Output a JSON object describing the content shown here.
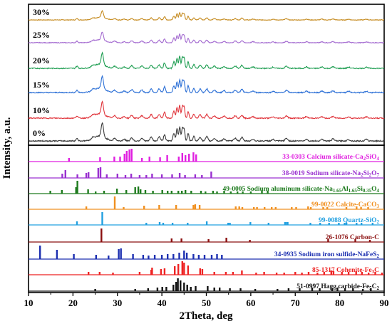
{
  "chart_data": {
    "type": "line",
    "xlabel": "2Theta, deg",
    "ylabel": "Intensity, a.u.",
    "xlim": [
      10,
      90
    ],
    "xticks": [
      "10",
      "20",
      "30",
      "40",
      "50",
      "60",
      "70",
      "80",
      "90"
    ],
    "grid": false,
    "series": [
      {
        "name": "30%",
        "color": "#c58a1e"
      },
      {
        "name": "25%",
        "color": "#a36ad0"
      },
      {
        "name": "20%",
        "color": "#1f9e52"
      },
      {
        "name": "15%",
        "color": "#2b6fd6"
      },
      {
        "name": "10%",
        "color": "#e0333a"
      },
      {
        "name": "0%",
        "color": "#3a3a3a"
      }
    ],
    "peaks": [
      {
        "x": 26.6,
        "h": 0.95,
        "w": 0.35
      },
      {
        "x": 26.0,
        "h": 0.35,
        "w": 1.8
      },
      {
        "x": 20.9,
        "h": 0.18,
        "w": 0.3
      },
      {
        "x": 24.5,
        "h": 0.12,
        "w": 0.4
      },
      {
        "x": 29.4,
        "h": 0.18,
        "w": 0.4
      },
      {
        "x": 31.5,
        "h": 0.12,
        "w": 0.4
      },
      {
        "x": 33.2,
        "h": 0.22,
        "w": 0.4
      },
      {
        "x": 35.5,
        "h": 0.2,
        "w": 0.4
      },
      {
        "x": 37.6,
        "h": 0.28,
        "w": 0.35
      },
      {
        "x": 39.4,
        "h": 0.3,
        "w": 0.35
      },
      {
        "x": 40.6,
        "h": 0.45,
        "w": 0.3
      },
      {
        "x": 42.7,
        "h": 0.55,
        "w": 0.3
      },
      {
        "x": 43.4,
        "h": 0.85,
        "w": 0.25
      },
      {
        "x": 44.0,
        "h": 1.0,
        "w": 0.25
      },
      {
        "x": 44.6,
        "h": 0.9,
        "w": 0.25
      },
      {
        "x": 45.0,
        "h": 0.85,
        "w": 0.25
      },
      {
        "x": 45.9,
        "h": 0.55,
        "w": 0.25
      },
      {
        "x": 47.2,
        "h": 0.32,
        "w": 0.3
      },
      {
        "x": 48.6,
        "h": 0.28,
        "w": 0.35
      },
      {
        "x": 50.1,
        "h": 0.3,
        "w": 0.35
      },
      {
        "x": 51.8,
        "h": 0.18,
        "w": 0.4
      },
      {
        "x": 54.0,
        "h": 0.15,
        "w": 0.4
      },
      {
        "x": 56.5,
        "h": 0.2,
        "w": 0.4
      },
      {
        "x": 58.0,
        "h": 0.25,
        "w": 0.35
      },
      {
        "x": 60.5,
        "h": 0.12,
        "w": 0.4
      },
      {
        "x": 65.0,
        "h": 0.1,
        "w": 0.4
      },
      {
        "x": 68.0,
        "h": 0.18,
        "w": 0.4
      },
      {
        "x": 72.5,
        "h": 0.12,
        "w": 0.4
      },
      {
        "x": 76.0,
        "h": 0.12,
        "w": 0.4
      },
      {
        "x": 78.5,
        "h": 0.14,
        "w": 0.4
      },
      {
        "x": 82.0,
        "h": 0.1,
        "w": 0.4
      },
      {
        "x": 86.0,
        "h": 0.1,
        "w": 0.4
      }
    ],
    "reference_patterns": [
      {
        "name": "33-0303 Calcium silicate-Ca",
        "formula": [
          [
            "2",
            "sub"
          ],
          [
            "SiO",
            "n"
          ],
          [
            "4",
            "sub"
          ]
        ],
        "color": "#e020e0",
        "sticks": [
          [
            19.1,
            0.25
          ],
          [
            26.1,
            0.3
          ],
          [
            29.3,
            0.35
          ],
          [
            30.6,
            0.35
          ],
          [
            31.6,
            0.55
          ],
          [
            32.1,
            0.75
          ],
          [
            32.7,
            0.85
          ],
          [
            33.2,
            0.9
          ],
          [
            35.5,
            0.25
          ],
          [
            37.2,
            0.35
          ],
          [
            39.6,
            0.3
          ],
          [
            41.2,
            0.45
          ],
          [
            43.8,
            0.35
          ],
          [
            44.6,
            0.6
          ],
          [
            45.3,
            0.45
          ],
          [
            46.1,
            0.55
          ],
          [
            47.1,
            0.65
          ],
          [
            47.7,
            0.5
          ]
        ]
      },
      {
        "name": "38-0019 Sodium silicate-Na",
        "formula": [
          [
            "2",
            "sub"
          ],
          [
            "Si",
            "n"
          ],
          [
            "2",
            "sub"
          ],
          [
            "O",
            "n"
          ],
          [
            "7",
            "sub"
          ]
        ],
        "color": "#9a30d0",
        "sticks": [
          [
            17.6,
            0.3
          ],
          [
            18.3,
            0.55
          ],
          [
            21.0,
            0.25
          ],
          [
            23.0,
            0.35
          ],
          [
            23.5,
            0.4
          ],
          [
            25.7,
            0.7
          ],
          [
            26.2,
            0.75
          ],
          [
            27.6,
            0.25
          ],
          [
            30.0,
            0.3
          ],
          [
            31.8,
            0.2
          ],
          [
            33.1,
            0.3
          ],
          [
            35.0,
            0.2
          ],
          [
            36.5,
            0.2
          ],
          [
            37.8,
            0.3
          ],
          [
            40.0,
            0.25
          ],
          [
            42.3,
            0.25
          ],
          [
            44.0,
            0.35
          ],
          [
            45.2,
            0.2
          ],
          [
            47.5,
            0.25
          ],
          [
            49.0,
            0.2
          ],
          [
            51.1,
            0.45
          ]
        ]
      },
      {
        "name": "49-0005 Sodium aluminum silicate-Na",
        "formula": [
          [
            "1.65",
            "sub"
          ],
          [
            "Al",
            "n"
          ],
          [
            "1.65",
            "sub"
          ],
          [
            "Si",
            "n"
          ],
          [
            "0.35",
            "sub"
          ],
          [
            "O",
            "n"
          ],
          [
            "4",
            "sub"
          ]
        ],
        "color": "#1e7b1e",
        "sticks": [
          [
            14.9,
            0.2
          ],
          [
            17.5,
            0.25
          ],
          [
            20.7,
            0.45
          ],
          [
            21.0,
            0.9
          ],
          [
            23.4,
            0.3
          ],
          [
            25.1,
            0.15
          ],
          [
            27.0,
            0.2
          ],
          [
            29.9,
            0.35
          ],
          [
            32.0,
            0.25
          ],
          [
            34.0,
            0.45
          ],
          [
            34.7,
            0.5
          ],
          [
            35.2,
            0.3
          ],
          [
            36.3,
            0.25
          ],
          [
            38.0,
            0.2
          ],
          [
            40.1,
            0.25
          ],
          [
            41.3,
            0.2
          ],
          [
            42.2,
            0.2
          ],
          [
            43.7,
            0.2
          ],
          [
            44.5,
            0.2
          ],
          [
            45.3,
            0.25
          ],
          [
            46.6,
            0.2
          ],
          [
            48.8,
            0.2
          ],
          [
            49.8,
            0.15
          ],
          [
            51.5,
            0.2
          ],
          [
            52.4,
            0.15
          ],
          [
            54.0,
            0.2
          ],
          [
            55.5,
            0.15
          ],
          [
            57.0,
            0.15
          ],
          [
            58.2,
            0.15
          ],
          [
            60.0,
            0.15
          ],
          [
            62.5,
            0.2
          ],
          [
            63.8,
            0.2
          ]
        ]
      },
      {
        "name": "99-0022 Calcite-CaCO",
        "formula": [
          [
            "3",
            "sub"
          ]
        ],
        "color": "#f09020",
        "sticks": [
          [
            23.0,
            0.2
          ],
          [
            29.4,
            0.9
          ],
          [
            31.4,
            0.15
          ],
          [
            36.0,
            0.25
          ],
          [
            39.4,
            0.3
          ],
          [
            43.2,
            0.3
          ],
          [
            47.1,
            0.3
          ],
          [
            47.5,
            0.35
          ],
          [
            48.5,
            0.3
          ],
          [
            56.6,
            0.2
          ],
          [
            57.4,
            0.2
          ],
          [
            58.1,
            0.15
          ],
          [
            60.7,
            0.15
          ],
          [
            61.4,
            0.15
          ],
          [
            63.1,
            0.15
          ],
          [
            64.7,
            0.15
          ],
          [
            65.6,
            0.15
          ],
          [
            69.2,
            0.15
          ],
          [
            70.2,
            0.15
          ],
          [
            72.9,
            0.2
          ],
          [
            73.5,
            0.15
          ],
          [
            76.3,
            0.15
          ],
          [
            77.2,
            0.15
          ],
          [
            81.5,
            0.15
          ],
          [
            83.8,
            0.2
          ],
          [
            84.8,
            0.15
          ],
          [
            86.4,
            0.15
          ]
        ]
      },
      {
        "name": "99-0088 Quartz-SiO",
        "formula": [
          [
            "2",
            "sub"
          ]
        ],
        "color": "#22a0e0",
        "sticks": [
          [
            20.9,
            0.25
          ],
          [
            26.6,
            0.9
          ],
          [
            36.5,
            0.15
          ],
          [
            39.5,
            0.2
          ],
          [
            40.3,
            0.15
          ],
          [
            42.4,
            0.15
          ],
          [
            45.8,
            0.15
          ],
          [
            50.1,
            0.25
          ],
          [
            54.9,
            0.15
          ],
          [
            55.3,
            0.15
          ],
          [
            59.9,
            0.2
          ],
          [
            64.0,
            0.15
          ],
          [
            67.7,
            0.2
          ],
          [
            68.1,
            0.2
          ],
          [
            68.3,
            0.2
          ],
          [
            73.4,
            0.15
          ],
          [
            75.6,
            0.15
          ],
          [
            77.6,
            0.15
          ],
          [
            79.8,
            0.15
          ],
          [
            81.1,
            0.15
          ],
          [
            81.5,
            0.15
          ],
          [
            83.8,
            0.15
          ],
          [
            84.9,
            0.15
          ],
          [
            87.4,
            0.15
          ]
        ]
      },
      {
        "name": "26-1076 Carbon-C",
        "formula": [],
        "color": "#8b1010",
        "sticks": [
          [
            26.4,
            0.95
          ],
          [
            42.2,
            0.25
          ],
          [
            44.4,
            0.25
          ],
          [
            50.5,
            0.2
          ],
          [
            54.5,
            0.3
          ],
          [
            59.8,
            0.15
          ],
          [
            77.4,
            0.25
          ],
          [
            83.5,
            0.2
          ],
          [
            86.8,
            0.15
          ]
        ]
      },
      {
        "name": "34-0935 Sodium iron sulfide-NaFeS",
        "formula": [
          [
            "2",
            "sub"
          ]
        ],
        "color": "#1c2fb0",
        "sticks": [
          [
            12.6,
            0.95
          ],
          [
            16.4,
            0.65
          ],
          [
            20.2,
            0.35
          ],
          [
            25.2,
            0.3
          ],
          [
            28.0,
            0.25
          ],
          [
            30.3,
            0.7
          ],
          [
            30.8,
            0.75
          ],
          [
            33.5,
            0.35
          ],
          [
            35.8,
            0.3
          ],
          [
            37.0,
            0.25
          ],
          [
            38.4,
            0.3
          ],
          [
            40.0,
            0.3
          ],
          [
            41.3,
            0.35
          ],
          [
            42.6,
            0.35
          ],
          [
            43.9,
            0.45
          ],
          [
            45.0,
            0.6
          ],
          [
            45.6,
            0.45
          ],
          [
            47.1,
            0.35
          ],
          [
            48.3,
            0.3
          ],
          [
            49.6,
            0.3
          ],
          [
            51.2,
            0.3
          ],
          [
            52.4,
            0.35
          ],
          [
            53.5,
            0.3
          ]
        ]
      },
      {
        "name": "85-1317 Cohenite-Fe",
        "formula": [
          [
            "3",
            "sub"
          ],
          [
            "C",
            "n"
          ]
        ],
        "color": "#ee2222",
        "sticks": [
          [
            23.5,
            0.2
          ],
          [
            26.0,
            0.2
          ],
          [
            29.0,
            0.15
          ],
          [
            35.0,
            0.2
          ],
          [
            37.6,
            0.35
          ],
          [
            37.8,
            0.5
          ],
          [
            39.8,
            0.4
          ],
          [
            40.6,
            0.45
          ],
          [
            42.9,
            0.6
          ],
          [
            43.7,
            0.75
          ],
          [
            44.6,
            0.95
          ],
          [
            45.0,
            0.85
          ],
          [
            45.9,
            0.65
          ],
          [
            48.6,
            0.45
          ],
          [
            49.1,
            0.4
          ],
          [
            51.8,
            0.2
          ],
          [
            54.4,
            0.2
          ],
          [
            56.0,
            0.2
          ],
          [
            58.0,
            0.3
          ],
          [
            61.2,
            0.15
          ],
          [
            63.0,
            0.2
          ],
          [
            65.8,
            0.15
          ],
          [
            67.5,
            0.15
          ],
          [
            70.0,
            0.2
          ],
          [
            71.5,
            0.15
          ],
          [
            73.0,
            0.2
          ],
          [
            75.0,
            0.15
          ],
          [
            76.5,
            0.2
          ],
          [
            78.1,
            0.3
          ],
          [
            78.6,
            0.25
          ],
          [
            80.5,
            0.2
          ],
          [
            82.0,
            0.2
          ],
          [
            83.7,
            0.25
          ],
          [
            85.0,
            0.2
          ],
          [
            86.5,
            0.15
          ],
          [
            88.0,
            0.2
          ],
          [
            89.5,
            0.15
          ]
        ]
      },
      {
        "name": "51-0997 Hagg carbide-Fe",
        "formula": [
          [
            "5",
            "sub"
          ],
          [
            "C",
            "n"
          ],
          [
            "2",
            "sub"
          ]
        ],
        "color": "#111111",
        "sticks": [
          [
            25.0,
            0.15
          ],
          [
            34.0,
            0.15
          ],
          [
            36.9,
            0.2
          ],
          [
            39.0,
            0.25
          ],
          [
            40.1,
            0.3
          ],
          [
            41.0,
            0.3
          ],
          [
            42.6,
            0.45
          ],
          [
            43.2,
            0.65
          ],
          [
            43.6,
            0.9
          ],
          [
            44.2,
            0.75
          ],
          [
            45.0,
            0.6
          ],
          [
            45.7,
            0.45
          ],
          [
            46.5,
            0.3
          ],
          [
            47.6,
            0.35
          ],
          [
            50.3,
            0.35
          ],
          [
            51.8,
            0.25
          ],
          [
            53.0,
            0.25
          ],
          [
            55.3,
            0.2
          ],
          [
            57.7,
            0.2
          ],
          [
            61.0,
            0.15
          ],
          [
            66.0,
            0.15
          ],
          [
            68.5,
            0.2
          ],
          [
            71.0,
            0.2
          ],
          [
            73.8,
            0.25
          ],
          [
            75.5,
            0.2
          ],
          [
            78.3,
            0.2
          ],
          [
            79.5,
            0.25
          ],
          [
            81.2,
            0.2
          ],
          [
            83.0,
            0.2
          ],
          [
            85.2,
            0.15
          ],
          [
            87.0,
            0.2
          ]
        ]
      }
    ]
  }
}
